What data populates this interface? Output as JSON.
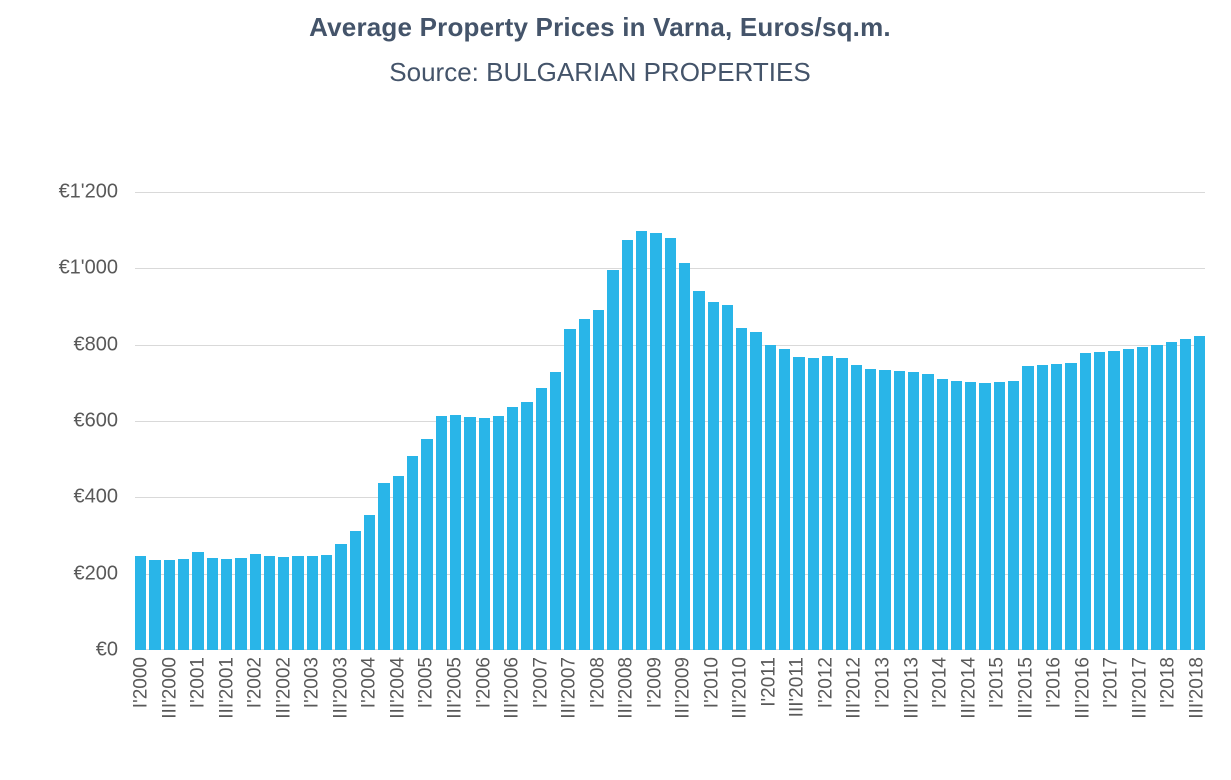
{
  "colors": {
    "bar": "#29b5e8",
    "title_text": "#44546a",
    "axis_text": "#595959",
    "gridline": "#d9d9d9",
    "background": "#ffffff"
  },
  "chart_data": {
    "type": "bar",
    "title": "Average Property Prices in Varna, Euros/sq.m.",
    "subtitle": "Source: BULGARIAN PROPERTIES",
    "unit": "EUR/sq.m.",
    "grid": true,
    "legend": "none",
    "ylim": [
      0,
      1200
    ],
    "ytick_step": 200,
    "ytick_labels": [
      "€0",
      "€200",
      "€400",
      "€600",
      "€800",
      "€1'000",
      "€1'200"
    ],
    "label_every": 2,
    "categories": [
      "I'2000",
      "II'2000",
      "III'2000",
      "IV'2000",
      "I'2001",
      "II'2001",
      "III'2001",
      "IV'2001",
      "I'2002",
      "II'2002",
      "III'2002",
      "IV'2002",
      "I'2003",
      "II'2003",
      "III'2003",
      "IV'2003",
      "I'2004",
      "II'2004",
      "III'2004",
      "IV'2004",
      "I'2005",
      "II'2005",
      "III'2005",
      "IV'2005",
      "I'2006",
      "II'2006",
      "III'2006",
      "IV'2006",
      "I'2007",
      "II'2007",
      "III'2007",
      "IV'2007",
      "I'2008",
      "II'2008",
      "III'2008",
      "IV'2008",
      "I'2009",
      "II'2009",
      "III'2009",
      "IV'2009",
      "I'2010",
      "II'2010",
      "III'2010",
      "IV'2010",
      "I'2011",
      "II'2011",
      "III'2011",
      "IV'2011",
      "I'2012",
      "II'2012",
      "III'2012",
      "IV'2012",
      "I'2013",
      "II'2013",
      "III'2013",
      "IV'2013",
      "I'2014",
      "II'2014",
      "III'2014",
      "IV'2014",
      "I'2015",
      "II'2015",
      "III'2015",
      "IV'2015",
      "I'2016",
      "II'2016",
      "III'2016",
      "IV'2016",
      "I'2017",
      "II'2017",
      "III'2017",
      "IV'2017",
      "I'2018",
      "II'2018",
      "III'2018"
    ],
    "values": [
      245,
      237,
      236,
      239,
      257,
      241,
      239,
      242,
      252,
      246,
      243,
      246,
      247,
      250,
      278,
      312,
      355,
      437,
      455,
      507,
      554,
      612,
      615,
      611,
      608,
      612,
      637,
      649,
      686,
      728,
      842,
      868,
      890,
      995,
      1075,
      1097,
      1093,
      1079,
      1013,
      940,
      912,
      905,
      843,
      833,
      800,
      789,
      768,
      765,
      770,
      764,
      748,
      737,
      733,
      730,
      728,
      722,
      711,
      706,
      702,
      700,
      702,
      706,
      744,
      746,
      749,
      751,
      779,
      781,
      784,
      789,
      794,
      799,
      806,
      814,
      822
    ]
  }
}
